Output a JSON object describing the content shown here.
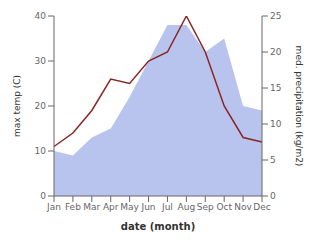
{
  "chart_data": {
    "type": "line",
    "categories": [
      "Jan",
      "Feb",
      "Mar",
      "Apr",
      "May",
      "Jun",
      "Jul",
      "Aug",
      "Sep",
      "Oct",
      "Nov",
      "Dec"
    ],
    "series": [
      {
        "type": "area",
        "axis": "y2",
        "color": "#b8c4ee",
        "values": [
          6.25,
          5.625,
          8.125,
          9.375,
          13.75,
          18.75,
          23.75,
          23.75,
          20,
          21.875,
          12.5,
          11.875
        ]
      },
      {
        "type": "line",
        "color": "#8b2525",
        "values": [
          11,
          14,
          19,
          26,
          25,
          30,
          32,
          40,
          32,
          20,
          13,
          12
        ]
      }
    ],
    "xlabel": "date (month)",
    "ylabel": "max temp (C)",
    "y2label": "med. precipitation (kg/m2)",
    "ylim": [
      0,
      40
    ],
    "yticks": [
      0,
      10,
      20,
      30,
      40
    ],
    "y2lim": [
      0,
      25
    ],
    "y2ticks": [
      0,
      5,
      10,
      15,
      20,
      25
    ],
    "grid": false
  }
}
